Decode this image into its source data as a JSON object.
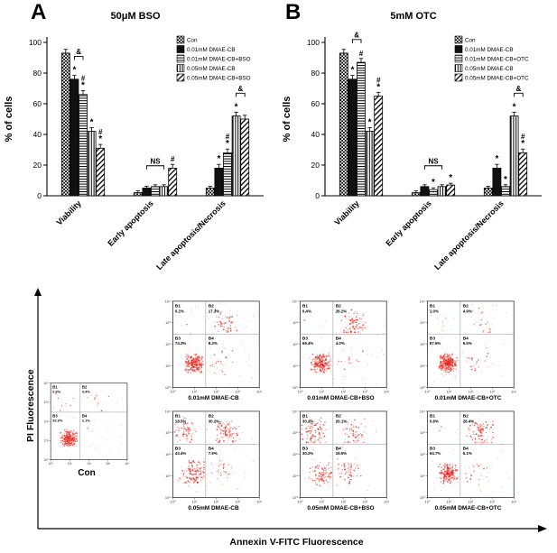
{
  "figure": {
    "panel_a_letter": "A",
    "panel_b_letter": "B"
  },
  "chart_data": [
    {
      "type": "bar",
      "panel": "A",
      "title": "50μM BSO",
      "ylabel": "% of cells",
      "ylim": [
        0,
        100
      ],
      "yticks": [
        0,
        20,
        40,
        60,
        80,
        100
      ],
      "legend_position": "top-right",
      "categories": [
        "Viability",
        "Early apoptosis",
        "Late apoptosis/Necrosis"
      ],
      "series": [
        {
          "name": "Con",
          "pattern": "checker",
          "values": [
            93,
            2,
            5
          ]
        },
        {
          "name": "0.01mM DMAE-CB",
          "pattern": "solid",
          "values": [
            76,
            5,
            18
          ]
        },
        {
          "name": "0.01mM DMAE-CB+BSO",
          "pattern": "hlines",
          "values": [
            66,
            6,
            28
          ]
        },
        {
          "name": "0.05mM DMAE-CB",
          "pattern": "vlines",
          "values": [
            42,
            6,
            52
          ]
        },
        {
          "name": "0.05mM DMAE-CB+BSO",
          "pattern": "diag",
          "values": [
            31,
            18,
            50
          ]
        }
      ],
      "marks": [
        [
          "",
          "*",
          "#*",
          "*",
          "#*"
        ],
        [
          "",
          "",
          "",
          "",
          "#"
        ],
        [
          "",
          "*",
          "#*",
          "*",
          ""
        ]
      ],
      "brackets": [
        {
          "category": 0,
          "from": 1,
          "to": 2,
          "label": "&"
        },
        {
          "category": 1,
          "from": 1,
          "to": 3,
          "label": "NS"
        },
        {
          "category": 2,
          "from": 3,
          "to": 4,
          "label": "&"
        }
      ]
    },
    {
      "type": "bar",
      "panel": "B",
      "title": "5mM OTC",
      "ylabel": "% of cells",
      "ylim": [
        0,
        100
      ],
      "yticks": [
        0,
        20,
        40,
        60,
        80,
        100
      ],
      "legend_position": "top-right",
      "categories": [
        "Viability",
        "Early apoptosis",
        "Late apoptosis/Necrosis"
      ],
      "series": [
        {
          "name": "Con",
          "pattern": "checker",
          "values": [
            93,
            2,
            5
          ]
        },
        {
          "name": "0.01mM DMAE-CB",
          "pattern": "solid",
          "values": [
            76,
            6,
            18
          ]
        },
        {
          "name": "0.01mM DMAE-CB+OTC",
          "pattern": "hlines",
          "values": [
            87,
            4,
            6
          ]
        },
        {
          "name": "0.05mM DMAE-CB",
          "pattern": "vlines",
          "values": [
            42,
            6,
            52
          ]
        },
        {
          "name": "0.05mM DMAE-CB+OTC",
          "pattern": "diag",
          "values": [
            65,
            7,
            28
          ]
        }
      ],
      "marks": [
        [
          "",
          "*",
          "#",
          "*",
          "#*"
        ],
        [
          "",
          "",
          "*",
          "",
          "*"
        ],
        [
          "",
          "*",
          "*",
          "*",
          "#*"
        ]
      ],
      "brackets": [
        {
          "category": 0,
          "from": 1,
          "to": 2,
          "label": "&"
        },
        {
          "category": 1,
          "from": 1,
          "to": 3,
          "label": "NS"
        },
        {
          "category": 2,
          "from": 3,
          "to": 4,
          "label": "&"
        }
      ]
    }
  ],
  "flow": {
    "xlabel": "Annexin V-FITC Fluorescence",
    "ylabel": "PI Fluorescence",
    "axis_ticks": [
      "10⁰",
      "10¹",
      "10²",
      "10³",
      "10⁴"
    ],
    "dot_color": "#e8251c",
    "plots": [
      {
        "id": "con",
        "label": "Con",
        "quadrants": {
          "B1": "2.6%",
          "B2": "3.4%",
          "B3": "92.9%",
          "B4": "1.1%"
        }
      },
      {
        "id": "p001",
        "label": "0.01mM DMAE-CB",
        "quadrants": {
          "B1": "0.2%",
          "B2": "17.3%",
          "B3": "74.3%",
          "B4": "8.2%"
        }
      },
      {
        "id": "p001bso",
        "label": "0.01mM DMAE-CB+BSO",
        "quadrants": {
          "B1": "0.4%",
          "B2": "26.2%",
          "B3": "69.4%",
          "B4": "4.0%"
        }
      },
      {
        "id": "p001otc",
        "label": "0.01mM DMAE-CB+OTC",
        "quadrants": {
          "B1": "1.0%",
          "B2": "4.9%",
          "B3": "87.6%",
          "B4": "6.5%"
        }
      },
      {
        "id": "p005",
        "label": "0.05mM DMAE-CB",
        "quadrants": {
          "B1": "18.5%",
          "B2": "30.2%",
          "B3": "43.4%",
          "B4": "7.9%"
        }
      },
      {
        "id": "p005bso",
        "label": "0.05mM DMAE-CB+BSO",
        "quadrants": {
          "B1": "30.2%",
          "B2": "20.1%",
          "B3": "30.2%",
          "B4": "19.5%"
        }
      },
      {
        "id": "p005otc",
        "label": "0.05mM DMAE-CB+OTC",
        "quadrants": {
          "B1": "0.8%",
          "B2": "28.4%",
          "B3": "64.7%",
          "B4": "6.1%"
        }
      }
    ]
  }
}
